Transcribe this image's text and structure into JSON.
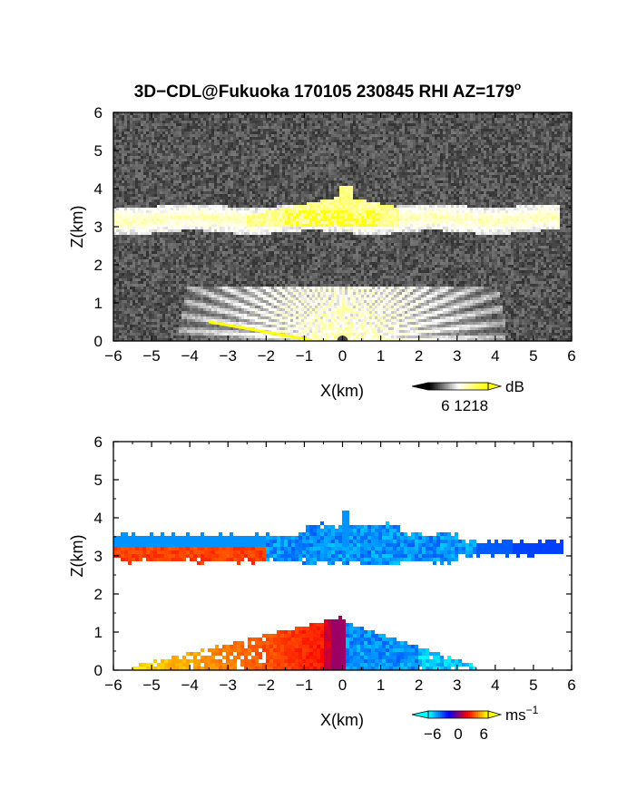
{
  "title": {
    "main": "3D−CDL@Fukuoka 170105 230845 RHI AZ=179",
    "degree": "o"
  },
  "chart_data": [
    {
      "type": "heatmap",
      "name": "reflectivity-rhi",
      "xlabel": "X(km)",
      "ylabel": "Z(km)",
      "xlim": [
        -6,
        6
      ],
      "ylim": [
        0,
        6
      ],
      "xticks": [
        "−6",
        "−5",
        "−4",
        "−3",
        "−2",
        "−1",
        "0",
        "1",
        "2",
        "3",
        "4",
        "5",
        "6"
      ],
      "yticks": [
        "0",
        "1",
        "2",
        "3",
        "4",
        "5",
        "6"
      ],
      "colorbar": {
        "unit": "dB",
        "ticks": [
          "6",
          "12",
          "18"
        ],
        "range": [
          0,
          21
        ],
        "colors": [
          "#000000",
          "#ffffff",
          "#ffff00"
        ]
      },
      "features": {
        "cloud_layer": {
          "x_range": [
            -6,
            6
          ],
          "z_center": 3.2,
          "z_thickness": 0.35,
          "value": 12
        },
        "bright_core": {
          "x_range": [
            -1.5,
            1.0
          ],
          "z_range": [
            3.0,
            3.4
          ],
          "value": 18
        },
        "top_spike": {
          "x": 0.1,
          "z_top": 4.1
        },
        "ground_fan": {
          "x_center": 0,
          "radius": 4.3,
          "value": 10
        },
        "ground_clutter_line": {
          "x_range": [
            -3.5,
            -0.7
          ],
          "value": 18
        },
        "noise_floor": 3
      }
    },
    {
      "type": "heatmap",
      "name": "doppler-velocity-rhi",
      "xlabel": "X(km)",
      "ylabel": "Z(km)",
      "xlim": [
        -6,
        6
      ],
      "ylim": [
        0,
        6
      ],
      "xticks": [
        "−6",
        "−5",
        "−4",
        "−3",
        "−2",
        "−1",
        "0",
        "1",
        "2",
        "3",
        "4",
        "5",
        "6"
      ],
      "yticks": [
        "0",
        "1",
        "2",
        "3",
        "4",
        "5",
        "6"
      ],
      "colorbar": {
        "unit": "ms",
        "unit_exp": "−1",
        "ticks": [
          "−6",
          "0",
          "6"
        ],
        "range": [
          -7,
          7
        ],
        "colors": [
          "#00ffff",
          "#0000ff",
          "#ff0000",
          "#ffff00"
        ]
      },
      "features": {
        "upper_layer": {
          "x_range": [
            -6,
            5.8
          ],
          "z_center": 3.2,
          "west_velocity": 3,
          "east_velocity": -6
        },
        "lower_layer": {
          "x_range": [
            -5.5,
            3.5
          ],
          "z_top": 1.3,
          "west_velocity": 6,
          "east_velocity": -7
        }
      }
    }
  ]
}
